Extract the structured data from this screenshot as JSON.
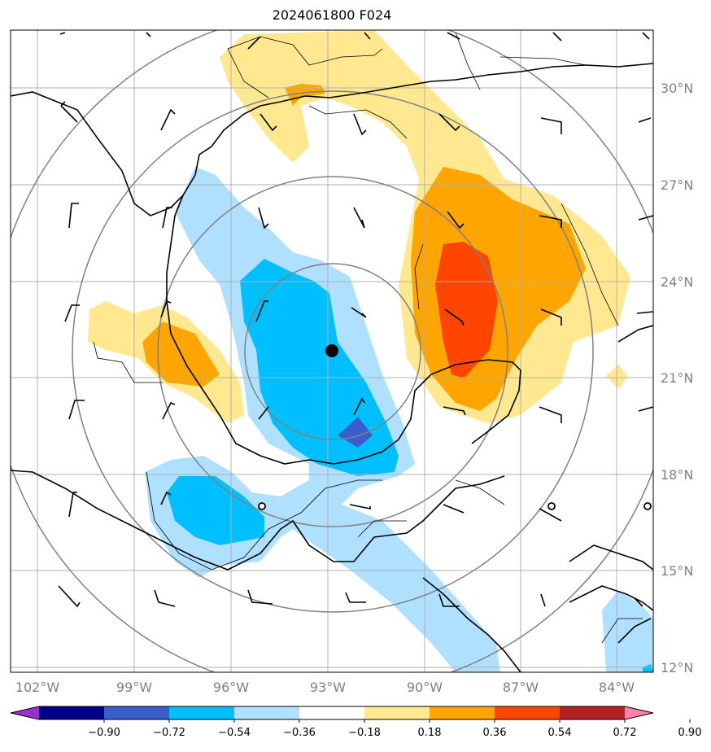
{
  "title": "2024061800 F024",
  "map": {
    "lon_ticks": [
      "102°W",
      "99°W",
      "96°W",
      "93°W",
      "90°W",
      "87°W",
      "84°W"
    ],
    "lat_ticks": [
      "30°N",
      "27°N",
      "24°N",
      "21°N",
      "18°N",
      "15°N",
      "12°N"
    ],
    "center_marker": "storm-center-dot",
    "range_rings": 4
  },
  "colorbar": {
    "labels": [
      "−0.90",
      "−0.72",
      "−0.54",
      "−0.36",
      "−0.18",
      "0.18",
      "0.36",
      "0.54",
      "0.72",
      "0.90"
    ],
    "colors": [
      "#9932cc",
      "#00008b",
      "#3a5fcd",
      "#00bfff",
      "#b0e0ff",
      "#ffffff",
      "#ffe890",
      "#ffa500",
      "#ff4500",
      "#b22222",
      "#ff82ab"
    ]
  }
}
